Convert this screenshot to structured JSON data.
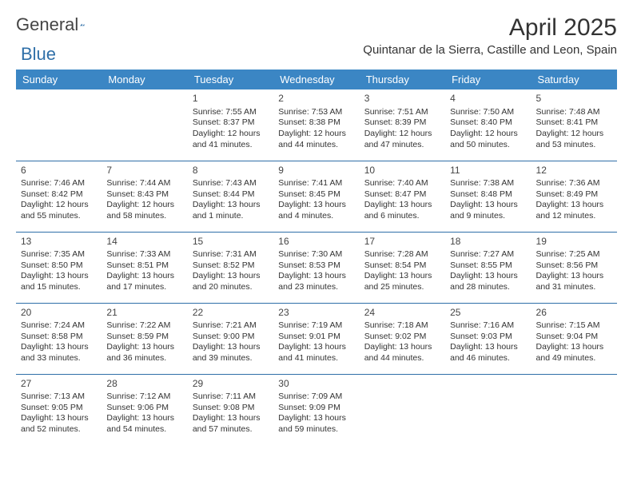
{
  "brand": {
    "text1": "General",
    "text2": "Blue"
  },
  "title": "April 2025",
  "location": "Quintanar de la Sierra, Castille and Leon, Spain",
  "colors": {
    "header_bg": "#3b86c4",
    "header_fg": "#ffffff",
    "row_border": "#2f6fa8",
    "text": "#333333",
    "logo_gray": "#444444",
    "logo_blue": "#2f6fa8",
    "page_bg": "#ffffff"
  },
  "day_headers": [
    "Sunday",
    "Monday",
    "Tuesday",
    "Wednesday",
    "Thursday",
    "Friday",
    "Saturday"
  ],
  "weeks": [
    [
      null,
      null,
      {
        "n": "1",
        "sr": "7:55 AM",
        "ss": "8:37 PM",
        "dl": "12 hours and 41 minutes."
      },
      {
        "n": "2",
        "sr": "7:53 AM",
        "ss": "8:38 PM",
        "dl": "12 hours and 44 minutes."
      },
      {
        "n": "3",
        "sr": "7:51 AM",
        "ss": "8:39 PM",
        "dl": "12 hours and 47 minutes."
      },
      {
        "n": "4",
        "sr": "7:50 AM",
        "ss": "8:40 PM",
        "dl": "12 hours and 50 minutes."
      },
      {
        "n": "5",
        "sr": "7:48 AM",
        "ss": "8:41 PM",
        "dl": "12 hours and 53 minutes."
      }
    ],
    [
      {
        "n": "6",
        "sr": "7:46 AM",
        "ss": "8:42 PM",
        "dl": "12 hours and 55 minutes."
      },
      {
        "n": "7",
        "sr": "7:44 AM",
        "ss": "8:43 PM",
        "dl": "12 hours and 58 minutes."
      },
      {
        "n": "8",
        "sr": "7:43 AM",
        "ss": "8:44 PM",
        "dl": "13 hours and 1 minute."
      },
      {
        "n": "9",
        "sr": "7:41 AM",
        "ss": "8:45 PM",
        "dl": "13 hours and 4 minutes."
      },
      {
        "n": "10",
        "sr": "7:40 AM",
        "ss": "8:47 PM",
        "dl": "13 hours and 6 minutes."
      },
      {
        "n": "11",
        "sr": "7:38 AM",
        "ss": "8:48 PM",
        "dl": "13 hours and 9 minutes."
      },
      {
        "n": "12",
        "sr": "7:36 AM",
        "ss": "8:49 PM",
        "dl": "13 hours and 12 minutes."
      }
    ],
    [
      {
        "n": "13",
        "sr": "7:35 AM",
        "ss": "8:50 PM",
        "dl": "13 hours and 15 minutes."
      },
      {
        "n": "14",
        "sr": "7:33 AM",
        "ss": "8:51 PM",
        "dl": "13 hours and 17 minutes."
      },
      {
        "n": "15",
        "sr": "7:31 AM",
        "ss": "8:52 PM",
        "dl": "13 hours and 20 minutes."
      },
      {
        "n": "16",
        "sr": "7:30 AM",
        "ss": "8:53 PM",
        "dl": "13 hours and 23 minutes."
      },
      {
        "n": "17",
        "sr": "7:28 AM",
        "ss": "8:54 PM",
        "dl": "13 hours and 25 minutes."
      },
      {
        "n": "18",
        "sr": "7:27 AM",
        "ss": "8:55 PM",
        "dl": "13 hours and 28 minutes."
      },
      {
        "n": "19",
        "sr": "7:25 AM",
        "ss": "8:56 PM",
        "dl": "13 hours and 31 minutes."
      }
    ],
    [
      {
        "n": "20",
        "sr": "7:24 AM",
        "ss": "8:58 PM",
        "dl": "13 hours and 33 minutes."
      },
      {
        "n": "21",
        "sr": "7:22 AM",
        "ss": "8:59 PM",
        "dl": "13 hours and 36 minutes."
      },
      {
        "n": "22",
        "sr": "7:21 AM",
        "ss": "9:00 PM",
        "dl": "13 hours and 39 minutes."
      },
      {
        "n": "23",
        "sr": "7:19 AM",
        "ss": "9:01 PM",
        "dl": "13 hours and 41 minutes."
      },
      {
        "n": "24",
        "sr": "7:18 AM",
        "ss": "9:02 PM",
        "dl": "13 hours and 44 minutes."
      },
      {
        "n": "25",
        "sr": "7:16 AM",
        "ss": "9:03 PM",
        "dl": "13 hours and 46 minutes."
      },
      {
        "n": "26",
        "sr": "7:15 AM",
        "ss": "9:04 PM",
        "dl": "13 hours and 49 minutes."
      }
    ],
    [
      {
        "n": "27",
        "sr": "7:13 AM",
        "ss": "9:05 PM",
        "dl": "13 hours and 52 minutes."
      },
      {
        "n": "28",
        "sr": "7:12 AM",
        "ss": "9:06 PM",
        "dl": "13 hours and 54 minutes."
      },
      {
        "n": "29",
        "sr": "7:11 AM",
        "ss": "9:08 PM",
        "dl": "13 hours and 57 minutes."
      },
      {
        "n": "30",
        "sr": "7:09 AM",
        "ss": "9:09 PM",
        "dl": "13 hours and 59 minutes."
      },
      null,
      null,
      null
    ]
  ],
  "labels": {
    "sunrise": "Sunrise:",
    "sunset": "Sunset:",
    "daylight": "Daylight:"
  }
}
